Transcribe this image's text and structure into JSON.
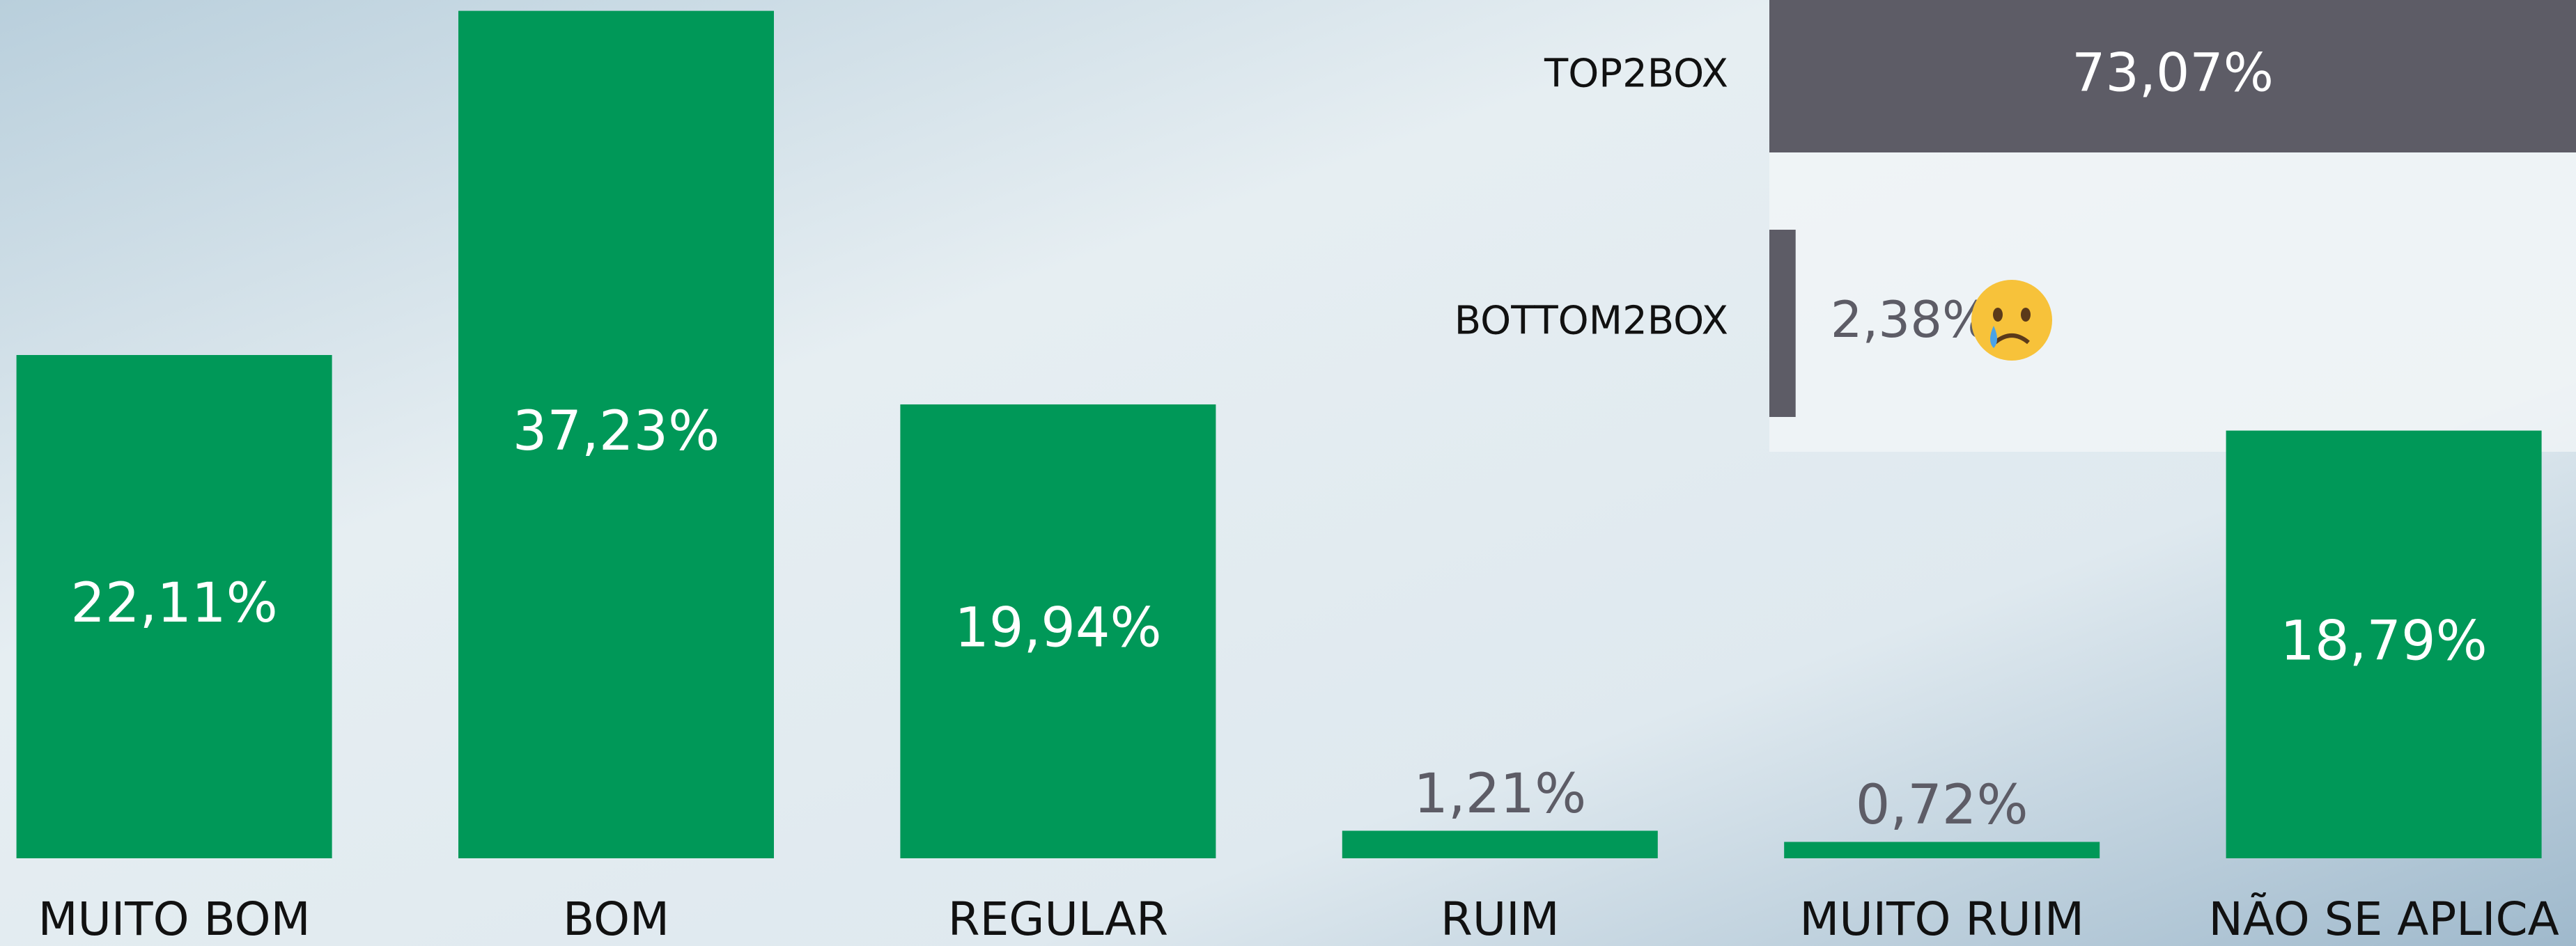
{
  "chart_data": [
    {
      "type": "bar",
      "orientation": "vertical",
      "categories": [
        "MUITO BOM",
        "BOM",
        "REGULAR",
        "RUIM",
        "MUITO RUIM",
        "NÃO SE APLICA"
      ],
      "values": [
        22.11,
        37.23,
        19.94,
        1.21,
        0.72,
        18.79
      ],
      "value_labels": [
        "22,11%",
        "37,23%",
        "19,94%",
        "1,21%",
        "0,72%",
        "18,79%"
      ],
      "color": "#009858"
    },
    {
      "type": "bar",
      "orientation": "horizontal",
      "categories": [
        "TOP2BOX",
        "BOTTOM2BOX"
      ],
      "values": [
        73.07,
        2.38
      ],
      "value_labels": [
        "73,07%",
        "2,38%"
      ],
      "color": "#5d5c66"
    }
  ]
}
